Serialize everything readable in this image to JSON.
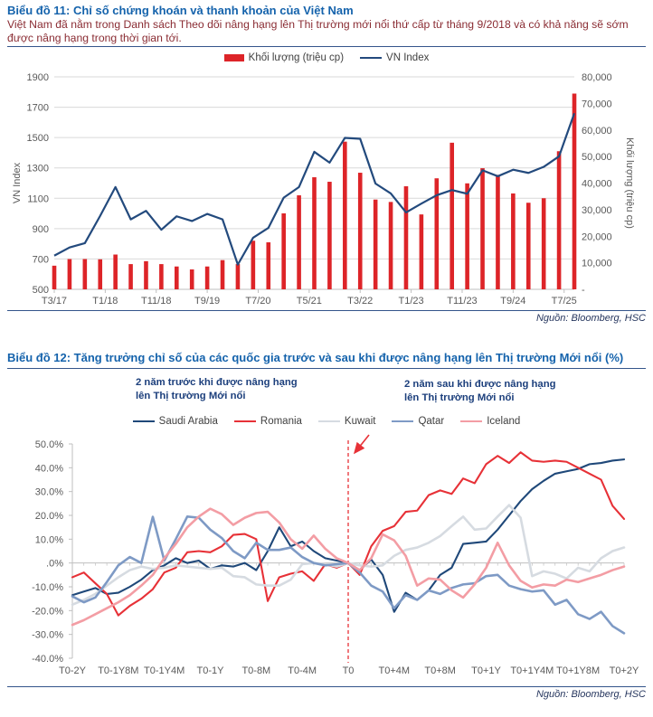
{
  "chart_data": [
    {
      "id": "bieu-do-11",
      "type": "bar+line",
      "title": "Biểu đồ 11: Chỉ số chứng khoán và thanh khoản của Việt Nam",
      "subtitle": "Việt Nam đã nằm trong Danh sách Theo dõi nâng hạng lên Thị trường mới nổi thứ cấp từ tháng 9/2018 và có khả năng sẽ sớm được nâng hạng trong thời gian tới.",
      "source": "Nguồn: Bloomberg, HSC",
      "grid": true,
      "legend_position": "top",
      "categories": [
        "T3/17",
        "T6/17",
        "T9/17",
        "T12/17",
        "T3/18",
        "T6/18",
        "T9/18",
        "T12/18",
        "T3/19",
        "T6/19",
        "T9/19",
        "T12/19",
        "T3/20",
        "T6/20",
        "T9/20",
        "T12/20",
        "T3/21",
        "T6/21",
        "T9/21",
        "T12/21",
        "T3/22",
        "T6/22",
        "T9/22",
        "T12/22",
        "T3/23",
        "T6/23",
        "T9/23",
        "T12/23",
        "T3/24",
        "T6/24",
        "T9/24",
        "T12/24",
        "T3/25",
        "T6/25",
        "T9/25"
      ],
      "x_tick_months": [
        0,
        10,
        20,
        30,
        40,
        50,
        60,
        70,
        80,
        90,
        100
      ],
      "x_tick_labels": [
        "T3/17",
        "T1/18",
        "T11/18",
        "T9/19",
        "T7/20",
        "T5/21",
        "T3/22",
        "T1/23",
        "T11/23",
        "T9/24",
        "T7/25"
      ],
      "left_axis": {
        "label": "VN Index",
        "min": 500,
        "max": 1900,
        "ticks": [
          "500",
          "700",
          "900",
          "1100",
          "1300",
          "1500",
          "1700",
          "1900"
        ]
      },
      "right_axis": {
        "label": "Khối lượng (triệu cp)",
        "min": 0,
        "max": 80000,
        "ticks": [
          "-",
          "10,000",
          "20,000",
          "30,000",
          "40,000",
          "50,000",
          "60,000",
          "70,000",
          "80,000"
        ]
      },
      "series": [
        {
          "name": "Khối lượng (triệu cp)",
          "type": "bar",
          "axis": "right",
          "color": "#dd2428",
          "values": [
            8900,
            11400,
            11400,
            11300,
            13100,
            9500,
            10600,
            9500,
            8600,
            7500,
            8600,
            11000,
            9500,
            18300,
            17700,
            28600,
            35400,
            42200,
            40500,
            55600,
            43900,
            33800,
            32900,
            38800,
            28200,
            41800,
            55200,
            39900,
            45600,
            43100,
            36100,
            32600,
            34300,
            52000,
            73700
          ]
        },
        {
          "name": "VN Index",
          "type": "line",
          "axis": "left",
          "color": "#234a7d",
          "width": 2.2,
          "values": [
            722,
            776,
            804,
            984,
            1174,
            961,
            1017,
            893,
            981,
            950,
            997,
            961,
            663,
            840,
            905,
            1104,
            1174,
            1406,
            1335,
            1498,
            1492,
            1197,
            1132,
            1007,
            1065,
            1120,
            1154,
            1130,
            1284,
            1245,
            1288,
            1267,
            1307,
            1376,
            1660
          ]
        }
      ]
    },
    {
      "id": "bieu-do-12",
      "type": "line",
      "title": "Biểu đồ 12: Tăng trưởng chỉ số của các quốc gia trước và sau khi được nâng hạng lên Thị trường Mới nổi (%)",
      "source": "Nguồn: Bloomberg, HSC",
      "annotations": [
        {
          "line1": "2 năm trước khi được nâng hạng",
          "line2": "lên Thị trường Mới nổi"
        },
        {
          "line1": "2 năm sau khi được nâng hạng",
          "line2": "lên Thị trường Mới nổi"
        }
      ],
      "x_start": -24,
      "x_step": 1,
      "x_tick_months": [
        -24,
        -20,
        -16,
        -12,
        -8,
        -4,
        0,
        4,
        8,
        12,
        16,
        20,
        24
      ],
      "x_tick_labels": [
        "T0-2Y",
        "T0-1Y8M",
        "T0-1Y4M",
        "T0-1Y",
        "T0-8M",
        "T0-4M",
        "T0",
        "T0+4M",
        "T0+8M",
        "T0+1Y",
        "T0+1Y4M",
        "T0+1Y8M",
        "T0+2Y"
      ],
      "y_axis": {
        "min": -40,
        "max": 50,
        "ticks": [
          "50.0%",
          "40.0%",
          "30.0%",
          "20.0%",
          "10.0%",
          ".0%",
          "-10.0%",
          "-20.0%",
          "-30.0%",
          "-40.0%"
        ]
      },
      "divider": {
        "x_month": 0,
        "color": "#e73137",
        "style": "dashed"
      },
      "legend_position": "top",
      "series": [
        {
          "name": "Saudi Arabia",
          "color": "#1f4879",
          "width": 2.1,
          "values": [
            -13.5,
            -12,
            -10.5,
            -13,
            -12.5,
            -10,
            -7,
            -3,
            -1,
            2,
            0,
            1,
            -2.5,
            -1,
            -1.5,
            0,
            -3,
            5,
            15,
            7,
            9,
            5,
            2,
            1,
            0,
            -3,
            1.5,
            -5,
            -20.5,
            -12.5,
            -15.5,
            -11.5,
            -5,
            -2,
            8,
            8.5,
            9,
            14,
            20,
            26,
            31,
            34.5,
            37.5,
            38.5,
            39.5,
            41.5,
            42,
            43,
            43.5
          ]
        },
        {
          "name": "Romania",
          "color": "#e73137",
          "width": 2.1,
          "values": [
            -6,
            -4,
            -8.5,
            -13,
            -22,
            -18,
            -15,
            -11,
            -4,
            -2,
            4.5,
            5,
            4.5,
            7,
            11.8,
            12.2,
            10,
            -16,
            -6,
            -4.5,
            -3.5,
            -7.5,
            -0.5,
            -2,
            0,
            -5,
            7,
            13.5,
            15.5,
            21.5,
            22,
            28.5,
            30.5,
            29,
            35.5,
            33.5,
            41.5,
            45,
            42,
            46.5,
            43,
            42.5,
            43,
            42.5,
            40,
            37.5,
            35,
            24,
            18.5
          ]
        },
        {
          "name": "Kuwait",
          "color": "#d6dbe1",
          "width": 2.6,
          "values": [
            -17.5,
            -15.5,
            -13,
            -9.5,
            -6,
            -3,
            -1.5,
            -2.5,
            -2,
            -1,
            -1.5,
            -2,
            -2.5,
            -2,
            -5.5,
            -6,
            -9,
            -9.5,
            -9.5,
            -7,
            -0.5,
            0,
            -0.5,
            -1.5,
            0,
            -1,
            -1.5,
            -1,
            3,
            5.5,
            6.5,
            8.5,
            11.3,
            15.5,
            19.5,
            14,
            14.5,
            19.5,
            24.3,
            19,
            -5.5,
            -3.5,
            -4.5,
            -6.5,
            -2,
            -3.5,
            2,
            5,
            6.5
          ]
        },
        {
          "name": "Qatar",
          "color": "#7e9ac5",
          "width": 2.6,
          "values": [
            -14,
            -16.5,
            -14.5,
            -8,
            -1,
            2.5,
            0,
            19.4,
            1,
            10,
            19.5,
            19,
            14,
            10.5,
            5,
            2,
            8.5,
            5.5,
            5.5,
            6.5,
            2.5,
            0,
            -1,
            -0.5,
            0,
            -4,
            -9.5,
            -12,
            -19,
            -13.5,
            -15.5,
            -11.5,
            -13,
            -10.5,
            -9,
            -8.5,
            -5.5,
            -5,
            -9.5,
            -11,
            -12,
            -11.5,
            -17.5,
            -15.5,
            -21.5,
            -23.5,
            -20.5,
            -26.5,
            -29.5
          ]
        },
        {
          "name": "Iceland",
          "color": "#f39da4",
          "width": 2.6,
          "values": [
            -26,
            -24,
            -21.5,
            -19,
            -16.5,
            -13.5,
            -9.5,
            -5,
            2,
            8,
            15,
            19.5,
            22.8,
            20.5,
            16,
            19,
            21,
            21.5,
            17,
            10,
            6,
            11.5,
            6,
            2,
            0,
            -3,
            2,
            12,
            9.5,
            3,
            -9.5,
            -6.5,
            -7,
            -11.5,
            -14.5,
            -9,
            -2,
            8.5,
            -1,
            -7.5,
            -10.3,
            -9,
            -9.5,
            -7,
            -8,
            -6.5,
            -5,
            -3,
            -1.5
          ]
        }
      ]
    }
  ]
}
